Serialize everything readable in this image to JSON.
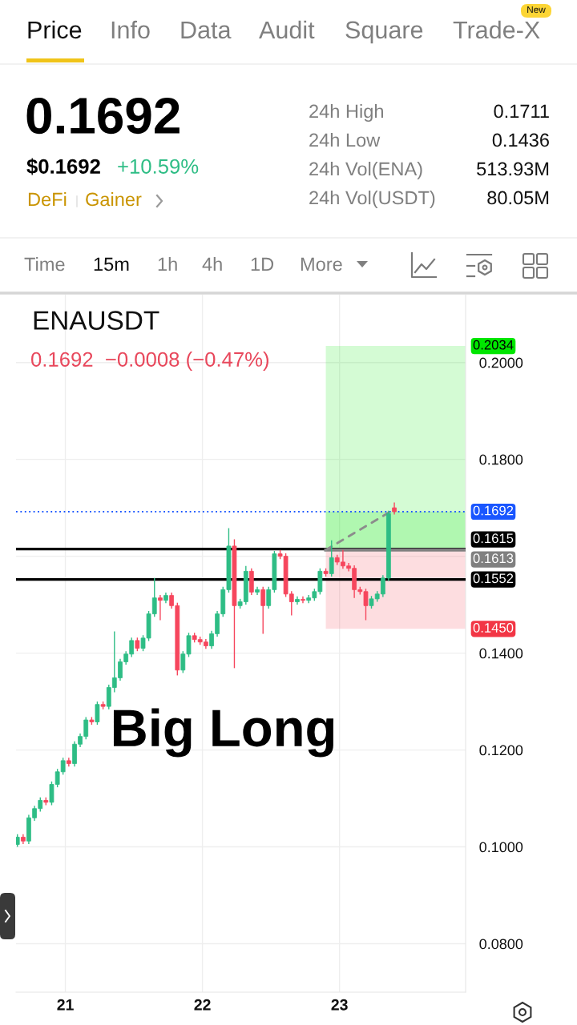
{
  "chart_data": {
    "type": "candlestick",
    "title": "ENAUSDT",
    "subtitle": "0.1692  −0.0008 (−0.47%)",
    "annotations": [
      "Price",
      "Info",
      "Data",
      "Audit",
      "Square",
      "Trade-X",
      "New",
      "0.1692",
      "$0.1692",
      "+10.59%",
      "DeFi",
      "Gainer",
      "24h High",
      "0.1711",
      "24h Low",
      "0.1436",
      "24h Vol(ENA)",
      "513.93M",
      "24h Vol(USDT)",
      "80.05M",
      "Time",
      "15m",
      "1h",
      "4h",
      "1D",
      "More",
      "Big Long"
    ],
    "x": [
      20.65,
      20.692,
      20.733,
      20.775,
      20.817,
      20.858,
      20.9,
      20.942,
      20.983,
      21.025,
      21.067,
      21.108,
      21.15,
      21.192,
      21.233,
      21.275,
      21.317,
      21.358,
      21.4,
      21.442,
      21.483,
      21.525,
      21.567,
      21.608,
      21.65,
      21.692,
      21.733,
      21.775,
      21.817,
      21.858,
      21.9,
      21.942,
      21.983,
      22.025,
      22.067,
      22.108,
      22.15,
      22.192,
      22.233,
      22.275,
      22.317,
      22.358,
      22.4,
      22.442,
      22.483,
      22.525,
      22.567,
      22.608,
      22.65,
      22.692,
      22.733,
      22.775,
      22.817,
      22.858,
      22.9,
      22.942,
      22.983,
      23.025,
      23.067,
      23.108,
      23.15,
      23.192,
      23.233,
      23.275,
      23.317,
      23.358,
      23.4
    ],
    "ohlc": [
      [
        0.1005,
        0.1026,
        0.1,
        0.102
      ],
      [
        0.102,
        0.1026,
        0.1006,
        0.1012
      ],
      [
        0.1012,
        0.1066,
        0.1006,
        0.106
      ],
      [
        0.106,
        0.1085,
        0.1054,
        0.1079
      ],
      [
        0.1079,
        0.1102,
        0.1073,
        0.1096
      ],
      [
        0.1096,
        0.1102,
        0.1086,
        0.1092
      ],
      [
        0.1092,
        0.1135,
        0.1086,
        0.1129
      ],
      [
        0.1129,
        0.1161,
        0.1123,
        0.1155
      ],
      [
        0.1155,
        0.1184,
        0.1149,
        0.1178
      ],
      [
        0.1178,
        0.1184,
        0.1166,
        0.1172
      ],
      [
        0.1172,
        0.1218,
        0.1166,
        0.1212
      ],
      [
        0.1212,
        0.1234,
        0.1206,
        0.1228
      ],
      [
        0.1228,
        0.1268,
        0.1222,
        0.1262
      ],
      [
        0.1262,
        0.1268,
        0.1252,
        0.1258
      ],
      [
        0.1258,
        0.13,
        0.1252,
        0.1294
      ],
      [
        0.1294,
        0.13,
        0.1284,
        0.129
      ],
      [
        0.129,
        0.1335,
        0.1284,
        0.1329
      ],
      [
        0.1329,
        0.1445,
        0.1319,
        0.1349
      ],
      [
        0.1349,
        0.1388,
        0.1343,
        0.1382
      ],
      [
        0.1382,
        0.1404,
        0.1376,
        0.1398
      ],
      [
        0.1398,
        0.1432,
        0.1392,
        0.1426
      ],
      [
        0.1426,
        0.1432,
        0.1404,
        0.141
      ],
      [
        0.141,
        0.1437,
        0.1404,
        0.1431
      ],
      [
        0.1431,
        0.1487,
        0.1425,
        0.1481
      ],
      [
        0.1481,
        0.1555,
        0.1475,
        0.1514
      ],
      [
        0.1514,
        0.152,
        0.1468,
        0.1509
      ],
      [
        0.1509,
        0.1525,
        0.1503,
        0.1519
      ],
      [
        0.1519,
        0.1525,
        0.1492,
        0.1498
      ],
      [
        0.1498,
        0.1504,
        0.1354,
        0.1365
      ],
      [
        0.1365,
        0.1404,
        0.1359,
        0.1398
      ],
      [
        0.1398,
        0.1442,
        0.1392,
        0.1436
      ],
      [
        0.1436,
        0.1442,
        0.1422,
        0.1428
      ],
      [
        0.1428,
        0.1434,
        0.1417,
        0.1423
      ],
      [
        0.1423,
        0.1429,
        0.1409,
        0.1415
      ],
      [
        0.1415,
        0.1446,
        0.1409,
        0.144
      ],
      [
        0.144,
        0.1487,
        0.1434,
        0.1481
      ],
      [
        0.1481,
        0.1537,
        0.1475,
        0.1531
      ],
      [
        0.1531,
        0.1658,
        0.1525,
        0.1621
      ],
      [
        0.1621,
        0.1635,
        0.1369,
        0.1498
      ],
      [
        0.1498,
        0.1512,
        0.1492,
        0.1506
      ],
      [
        0.1506,
        0.158,
        0.15,
        0.1569
      ],
      [
        0.1569,
        0.1575,
        0.152,
        0.1526
      ],
      [
        0.1526,
        0.1537,
        0.152,
        0.1531
      ],
      [
        0.1531,
        0.1537,
        0.144,
        0.1498
      ],
      [
        0.1498,
        0.1537,
        0.1492,
        0.1531
      ],
      [
        0.1531,
        0.1611,
        0.1525,
        0.1605
      ],
      [
        0.1605,
        0.1613,
        0.1594,
        0.16
      ],
      [
        0.16,
        0.1606,
        0.1516,
        0.1522
      ],
      [
        0.1522,
        0.1528,
        0.1478,
        0.1506
      ],
      [
        0.1506,
        0.1517,
        0.15,
        0.1511
      ],
      [
        0.1511,
        0.1517,
        0.1503,
        0.1509
      ],
      [
        0.1509,
        0.152,
        0.1503,
        0.1514
      ],
      [
        0.1514,
        0.1533,
        0.1508,
        0.1527
      ],
      [
        0.1527,
        0.1575,
        0.1521,
        0.1569
      ],
      [
        0.1569,
        0.1575,
        0.1558,
        0.1564
      ],
      [
        0.1564,
        0.1633,
        0.1558,
        0.1597
      ],
      [
        0.1597,
        0.1603,
        0.1582,
        0.1588
      ],
      [
        0.1588,
        0.1613,
        0.1574,
        0.158
      ],
      [
        0.158,
        0.1586,
        0.1569,
        0.1575
      ],
      [
        0.1575,
        0.1581,
        0.1514,
        0.1531
      ],
      [
        0.1531,
        0.1537,
        0.1521,
        0.1527
      ],
      [
        0.1527,
        0.1533,
        0.1468,
        0.1498
      ],
      [
        0.1498,
        0.1518,
        0.1492,
        0.1512
      ],
      [
        0.1512,
        0.1528,
        0.1506,
        0.1522
      ],
      [
        0.1522,
        0.1561,
        0.1516,
        0.1555
      ],
      [
        0.1555,
        0.1694,
        0.1549,
        0.1688
      ],
      [
        0.17,
        0.1711,
        0.1686,
        0.1692
      ]
    ],
    "colors": [
      "#2ebd85",
      "#f6465d",
      "#2ebd85",
      "#2ebd85",
      "#2ebd85",
      "#f6465d",
      "#2ebd85",
      "#2ebd85",
      "#2ebd85",
      "#f6465d",
      "#2ebd85",
      "#2ebd85",
      "#2ebd85",
      "#f6465d",
      "#2ebd85",
      "#f6465d",
      "#2ebd85",
      "#2ebd85",
      "#2ebd85",
      "#2ebd85",
      "#2ebd85",
      "#f6465d",
      "#2ebd85",
      "#2ebd85",
      "#2ebd85",
      "#f6465d",
      "#2ebd85",
      "#f6465d",
      "#f6465d",
      "#2ebd85",
      "#2ebd85",
      "#f6465d",
      "#f6465d",
      "#f6465d",
      "#2ebd85",
      "#2ebd85",
      "#2ebd85",
      "#2ebd85",
      "#f6465d",
      "#2ebd85",
      "#2ebd85",
      "#f6465d",
      "#2ebd85",
      "#f6465d",
      "#2ebd85",
      "#2ebd85",
      "#f6465d",
      "#f6465d",
      "#f6465d",
      "#2ebd85",
      "#f6465d",
      "#2ebd85",
      "#2ebd85",
      "#2ebd85",
      "#f6465d",
      "#2ebd85",
      "#f6465d",
      "#f6465d",
      "#f6465d",
      "#f6465d",
      "#f6465d",
      "#f6465d",
      "#2ebd85",
      "#2ebd85",
      "#2ebd85",
      "#2ebd85",
      "#f6465d"
    ],
    "series": [
      {
        "type": "line",
        "x": [
          22.9,
          23.37
        ],
        "values": [
          0.1613,
          0.1692
        ],
        "color": "#8c8c8c",
        "line_style": "dashed"
      }
    ],
    "bands": [
      {
        "axis": "y",
        "from": 0.1613,
        "to": 0.2034,
        "color": "#00e600",
        "label": "0.2034"
      },
      {
        "axis": "y",
        "from": 0.1613,
        "to": 0.145,
        "color": "#f23645",
        "label": "0.1450"
      },
      {
        "axis": "y",
        "from": 0.1613,
        "to": 0.1692,
        "color": "#00e600",
        "label": null
      }
    ],
    "ref_lines": [
      {
        "axis": "y",
        "value": 0.1692,
        "label": "0.1692",
        "color": "#1a56ff",
        "line_style": "dotted"
      },
      {
        "axis": "y",
        "value": 0.1615,
        "label": "0.1615",
        "color": "#000000",
        "line_style": "solid"
      },
      {
        "axis": "y",
        "value": 0.1613,
        "label": "0.1613",
        "color": "#808080",
        "line_style": "solid"
      },
      {
        "axis": "y",
        "value": 0.1552,
        "label": "0.1552",
        "color": "#000000",
        "line_style": "solid"
      }
    ],
    "xlim": [
      20.64,
      23.92
    ],
    "ylim": [
      0.07,
      0.214
    ],
    "xticks": [
      21,
      22,
      23
    ],
    "yticks": [
      {
        "value": 0.08,
        "label": "0.0800"
      },
      {
        "value": 0.1,
        "label": "0.1000"
      },
      {
        "value": 0.12,
        "label": "0.1200"
      },
      {
        "value": 0.14,
        "label": "0.1400"
      },
      {
        "value": 0.16,
        "label": null
      },
      {
        "value": 0.18,
        "label": "0.1800"
      },
      {
        "value": 0.2,
        "label": "0.2000"
      }
    ],
    "grid": true
  }
}
